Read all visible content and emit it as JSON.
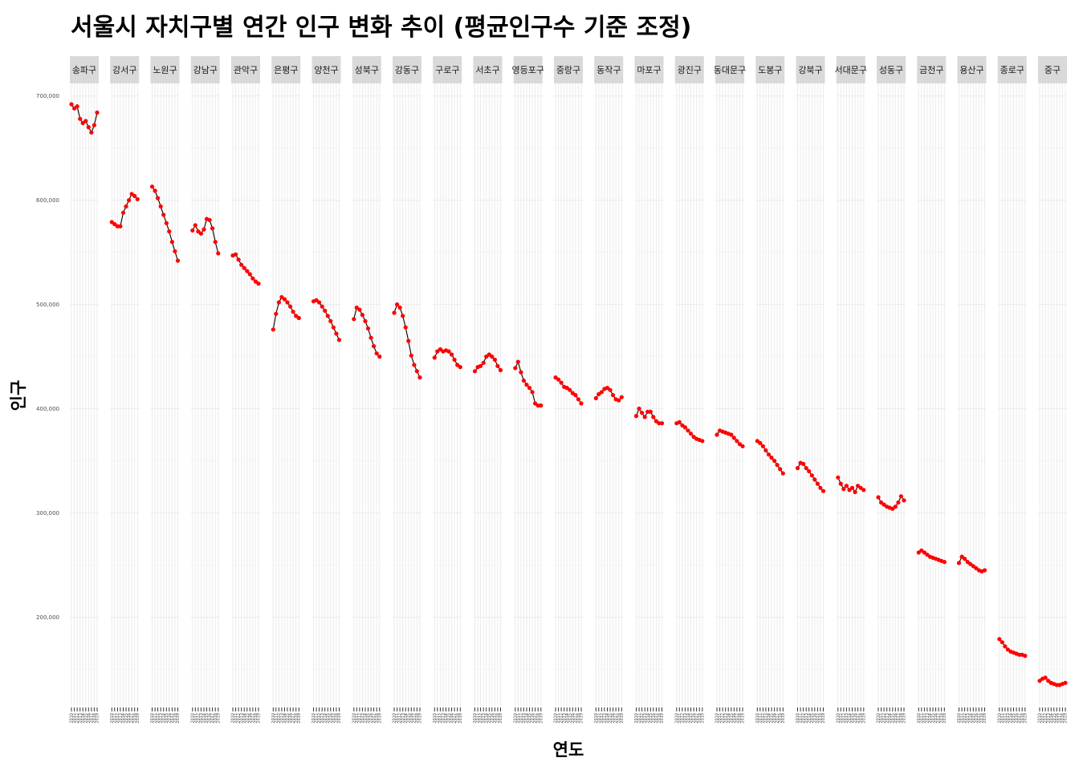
{
  "chart_data": {
    "type": "line",
    "title": "서울시 자치구별 연간 인구 변화 추이 (평균인구수 기준 조정)",
    "xlabel": "연도",
    "ylabel": "인구",
    "ylim": [
      115000,
      712000
    ],
    "y_ticks": [
      200000,
      300000,
      400000,
      500000,
      600000,
      700000
    ],
    "y_tick_labels": [
      "200,000",
      "300,000",
      "400,000",
      "500,000",
      "600,000",
      "700,000"
    ],
    "x_tick_labels": [
      "2010",
      "2011",
      "2012",
      "2013",
      "2014",
      "2015",
      "2016",
      "2017",
      "2018",
      "2019"
    ],
    "grid": true,
    "point_color": "#ff0000",
    "line_color": "#000000",
    "strip_color": "#d9d9d9",
    "facets": [
      {
        "name": "송파구",
        "values": [
          692000,
          688000,
          690000,
          678000,
          674000,
          676000,
          670000,
          665000,
          672000,
          684000
        ]
      },
      {
        "name": "강서구",
        "values": [
          579000,
          577000,
          575000,
          575000,
          588000,
          594000,
          600000,
          606000,
          604000,
          601000
        ]
      },
      {
        "name": "노원구",
        "values": [
          613000,
          609000,
          602000,
          594000,
          586000,
          578000,
          570000,
          560000,
          551000,
          542000
        ]
      },
      {
        "name": "강남구",
        "values": [
          571000,
          576000,
          570000,
          568000,
          572000,
          582000,
          581000,
          573000,
          560000,
          549000
        ]
      },
      {
        "name": "관악구",
        "values": [
          547000,
          548000,
          543000,
          538000,
          535000,
          532000,
          529000,
          525000,
          522000,
          520000
        ]
      },
      {
        "name": "은평구",
        "values": [
          476000,
          491000,
          502000,
          507000,
          505000,
          502000,
          498000,
          493000,
          489000,
          487000
        ]
      },
      {
        "name": "양천구",
        "values": [
          503000,
          504000,
          502000,
          498000,
          494000,
          489000,
          484000,
          478000,
          472000,
          466000
        ]
      },
      {
        "name": "성북구",
        "values": [
          486000,
          497000,
          495000,
          490000,
          484000,
          477000,
          468000,
          460000,
          453000,
          450000
        ]
      },
      {
        "name": "강동구",
        "values": [
          492000,
          500000,
          497000,
          489000,
          478000,
          465000,
          451000,
          442000,
          436000,
          430000
        ]
      },
      {
        "name": "구로구",
        "values": [
          449000,
          455000,
          457000,
          455000,
          456000,
          455000,
          452000,
          447000,
          442000,
          440000
        ]
      },
      {
        "name": "서초구",
        "values": [
          436000,
          440000,
          441000,
          444000,
          450000,
          452000,
          450000,
          447000,
          441000,
          437000
        ]
      },
      {
        "name": "영등포구",
        "values": [
          439000,
          445000,
          435000,
          427000,
          423000,
          420000,
          416000,
          405000,
          403000,
          403000
        ]
      },
      {
        "name": "중랑구",
        "values": [
          430000,
          428000,
          425000,
          421000,
          420000,
          418000,
          415000,
          413000,
          409000,
          405000
        ]
      },
      {
        "name": "동작구",
        "values": [
          410000,
          414000,
          416000,
          419000,
          420000,
          418000,
          413000,
          409000,
          408000,
          411000
        ]
      },
      {
        "name": "마포구",
        "values": [
          393000,
          400000,
          396000,
          392000,
          397000,
          397000,
          392000,
          388000,
          386000,
          386000
        ]
      },
      {
        "name": "광진구",
        "values": [
          386000,
          387000,
          384000,
          382000,
          379000,
          376000,
          373000,
          371000,
          370000,
          369000
        ]
      },
      {
        "name": "동대문구",
        "values": [
          375000,
          379000,
          378000,
          377000,
          376000,
          375000,
          372000,
          369000,
          366000,
          364000
        ]
      },
      {
        "name": "도봉구",
        "values": [
          369000,
          367000,
          364000,
          360000,
          356000,
          353000,
          350000,
          346000,
          342000,
          338000
        ]
      },
      {
        "name": "강북구",
        "values": [
          343000,
          348000,
          347000,
          343000,
          340000,
          336000,
          332000,
          328000,
          324000,
          321000
        ]
      },
      {
        "name": "서대문구",
        "values": [
          334000,
          328000,
          323000,
          326000,
          322000,
          324000,
          320000,
          326000,
          324000,
          322000
        ]
      },
      {
        "name": "성동구",
        "values": [
          315000,
          310000,
          308000,
          306000,
          305000,
          304000,
          306000,
          310000,
          316000,
          312000
        ]
      },
      {
        "name": "금천구",
        "values": [
          262000,
          264000,
          262000,
          260000,
          258000,
          257000,
          256000,
          255000,
          254000,
          253000
        ]
      },
      {
        "name": "용산구",
        "values": [
          252000,
          258000,
          256000,
          253000,
          251000,
          249000,
          247000,
          245000,
          244000,
          245000
        ]
      },
      {
        "name": "종로구",
        "values": [
          179000,
          176000,
          172000,
          169000,
          167000,
          166000,
          165000,
          164000,
          164000,
          163000
        ]
      },
      {
        "name": "중구",
        "values": [
          139000,
          141000,
          142000,
          139000,
          137000,
          136000,
          135000,
          135000,
          136000,
          137000
        ]
      }
    ]
  }
}
